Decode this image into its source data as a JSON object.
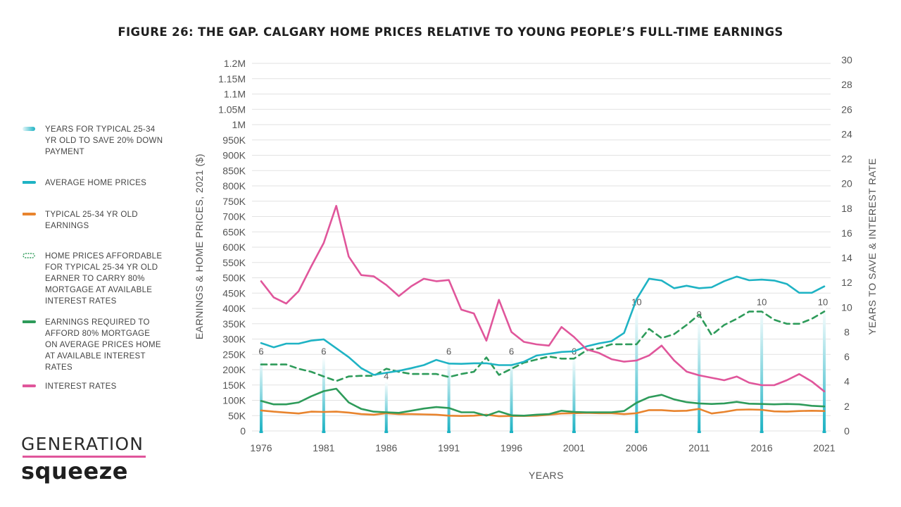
{
  "title": "FIGURE 26: THE GAP. CALGARY HOME PRICES RELATIVE TO YOUNG PEOPLE’S FULL-TIME EARNINGS",
  "brand": {
    "line1": "GENERATION",
    "line2": "squeeze"
  },
  "legend": [
    {
      "text": "YEARS FOR TYPICAL 25-34 YR OLD TO SAVE 20% DOWN PAYMENT",
      "swatch": "bar",
      "color": "#1fb3c4"
    },
    {
      "text": "AVERAGE HOME PRICES",
      "swatch": "line",
      "color": "#1fb3c4"
    },
    {
      "text": "TYPICAL 25-34 YR OLD EARNINGS",
      "swatch": "line",
      "color": "#e8842e"
    },
    {
      "text": "HOME PRICES AFFORDABLE FOR TYPICAL 25-34 YR OLD EARNER TO CARRY 80% MORTGAGE AT AVAILABLE INTEREST RATES",
      "swatch": "dashed",
      "color": "#2e9b5a"
    },
    {
      "text": "EARNINGS REQUIRED TO AFFORD 80% MORTGAGE ON AVERAGE PRICES HOME AT AVAILABLE INTEREST RATES",
      "swatch": "line",
      "color": "#2e9b5a"
    },
    {
      "text": "INTEREST RATES",
      "swatch": "line",
      "color": "#e0569b"
    }
  ],
  "chart_data": {
    "type": "line",
    "xlabel": "YEARS",
    "ylabel": "EARNINGS & HOME PRICES, 2021 ($)",
    "y2label": "YEARS TO SAVE & INTEREST RATE",
    "x": [
      1976,
      1977,
      1978,
      1979,
      1980,
      1981,
      1982,
      1983,
      1984,
      1985,
      1986,
      1987,
      1988,
      1989,
      1990,
      1991,
      1992,
      1993,
      1994,
      1995,
      1996,
      1997,
      1998,
      1999,
      2000,
      2001,
      2002,
      2003,
      2004,
      2005,
      2006,
      2007,
      2008,
      2009,
      2010,
      2011,
      2012,
      2013,
      2014,
      2015,
      2016,
      2017,
      2018,
      2019,
      2020,
      2021
    ],
    "x_ticks": [
      1976,
      1981,
      1986,
      1991,
      1996,
      2001,
      2006,
      2011,
      2016,
      2021
    ],
    "ylim": [
      0,
      1200000
    ],
    "y_ticks": [
      {
        "v": 0,
        "label": "0"
      },
      {
        "v": 50000,
        "label": "50K"
      },
      {
        "v": 100000,
        "label": "100K"
      },
      {
        "v": 150000,
        "label": "150K"
      },
      {
        "v": 200000,
        "label": "200K"
      },
      {
        "v": 250000,
        "label": "250K"
      },
      {
        "v": 300000,
        "label": "300K"
      },
      {
        "v": 350000,
        "label": "350K"
      },
      {
        "v": 400000,
        "label": "400K"
      },
      {
        "v": 450000,
        "label": "450K"
      },
      {
        "v": 500000,
        "label": "500K"
      },
      {
        "v": 550000,
        "label": "550K"
      },
      {
        "v": 600000,
        "label": "600K"
      },
      {
        "v": 650000,
        "label": "650K"
      },
      {
        "v": 700000,
        "label": "700K"
      },
      {
        "v": 750000,
        "label": "750K"
      },
      {
        "v": 800000,
        "label": "800K"
      },
      {
        "v": 850000,
        "label": "850K"
      },
      {
        "v": 900000,
        "label": "900K"
      },
      {
        "v": 950000,
        "label": "950K"
      },
      {
        "v": 1000000,
        "label": "1M"
      },
      {
        "v": 1050000,
        "label": "1.05M"
      },
      {
        "v": 1100000,
        "label": "1.1M"
      },
      {
        "v": 1150000,
        "label": "1.15M"
      },
      {
        "v": 1200000,
        "label": "1.2M"
      }
    ],
    "y2lim": [
      0,
      30
    ],
    "y2_ticks": [
      0,
      2,
      4,
      6,
      8,
      10,
      12,
      14,
      16,
      18,
      20,
      22,
      24,
      26,
      28,
      30
    ],
    "grid": true,
    "bars": {
      "name": "YEARS FOR TYPICAL 25-34 YR OLD TO SAVE 20% DOWN PAYMENT",
      "axis": "right",
      "points": [
        {
          "year": 1976,
          "value": 6,
          "label": "6"
        },
        {
          "year": 1981,
          "value": 6,
          "label": "6"
        },
        {
          "year": 1986,
          "value": 4,
          "label": "4"
        },
        {
          "year": 1991,
          "value": 6,
          "label": "6"
        },
        {
          "year": 1996,
          "value": 6,
          "label": "6"
        },
        {
          "year": 2001,
          "value": 6,
          "label": "6"
        },
        {
          "year": 2006,
          "value": 10,
          "label": "10"
        },
        {
          "year": 2011,
          "value": 9,
          "label": "9"
        },
        {
          "year": 2016,
          "value": 10,
          "label": "10"
        },
        {
          "year": 2021,
          "value": 10,
          "label": "10"
        }
      ]
    },
    "series": [
      {
        "name": "HOME PRICES AFFORDABLE FOR TYPICAL 25-34 YR OLD EARNER TO CARRY 80% MORTGAGE AT AVAILABLE INTEREST RATES",
        "axis": "left",
        "color": "#2e9b5a",
        "style": "dashed",
        "values": [
          217000,
          217000,
          217000,
          203000,
          193000,
          178000,
          163000,
          178000,
          180000,
          180000,
          203000,
          193000,
          186000,
          186000,
          186000,
          176000,
          186000,
          193000,
          240000,
          183000,
          203000,
          223000,
          233000,
          243000,
          236000,
          236000,
          263000,
          270000,
          283000,
          283000,
          283000,
          333000,
          303000,
          316000,
          346000,
          380000,
          313000,
          346000,
          366000,
          390000,
          390000,
          363000,
          350000,
          350000,
          366000,
          390000
        ]
      },
      {
        "name": "AVERAGE HOME PRICES",
        "axis": "left",
        "color": "#1fb3c4",
        "style": "solid",
        "values": [
          287000,
          273000,
          285000,
          285000,
          295000,
          299000,
          270000,
          241000,
          205000,
          183000,
          190000,
          196000,
          205000,
          215000,
          232000,
          220000,
          219000,
          221000,
          221000,
          215000,
          215000,
          226000,
          246000,
          252000,
          258000,
          260000,
          276000,
          286000,
          293000,
          320000,
          430000,
          497000,
          491000,
          466000,
          474000,
          466000,
          469000,
          489000,
          504000,
          492000,
          494000,
          491000,
          480000,
          451000,
          451000,
          472000
        ]
      },
      {
        "name": "TYPICAL 25-34 YR OLD EARNINGS",
        "axis": "left",
        "color": "#e8842e",
        "style": "solid",
        "values": [
          67000,
          63000,
          60000,
          57000,
          63000,
          62000,
          63000,
          60000,
          55000,
          53000,
          58000,
          55000,
          55000,
          54000,
          53000,
          50000,
          49000,
          50000,
          53000,
          48000,
          49000,
          49000,
          50000,
          53000,
          57000,
          58000,
          59000,
          58000,
          58000,
          55000,
          58000,
          68000,
          68000,
          65000,
          66000,
          72000,
          57000,
          62000,
          69000,
          70000,
          69000,
          64000,
          63000,
          65000,
          66000,
          65000
        ]
      },
      {
        "name": "EARNINGS REQUIRED TO AFFORD 80% MORTGAGE ON AVERAGE PRICES HOME AT AVAILABLE INTEREST RATES",
        "axis": "left",
        "color": "#2e9b5a",
        "style": "solid",
        "values": [
          98000,
          87000,
          87000,
          93000,
          113000,
          130000,
          138000,
          93000,
          72000,
          63000,
          61000,
          59000,
          66000,
          73000,
          78000,
          75000,
          61000,
          61000,
          50000,
          64000,
          51000,
          50000,
          53000,
          55000,
          66000,
          62000,
          61000,
          61000,
          61000,
          65000,
          92000,
          110000,
          118000,
          103000,
          94000,
          90000,
          88000,
          90000,
          95000,
          89000,
          88000,
          87000,
          88000,
          87000,
          82000,
          80000
        ]
      },
      {
        "name": "INTEREST RATES",
        "axis": "right",
        "color": "#e0569b",
        "style": "solid",
        "values": [
          12.1,
          10.8,
          10.3,
          11.3,
          13.3,
          15.2,
          18.2,
          14.1,
          12.6,
          12.5,
          11.8,
          10.9,
          11.7,
          12.3,
          12.1,
          12.2,
          9.8,
          9.5,
          7.3,
          10.6,
          8.0,
          7.2,
          7.0,
          6.9,
          8.4,
          7.6,
          6.6,
          6.3,
          5.8,
          5.6,
          5.7,
          6.1,
          6.9,
          5.7,
          4.8,
          4.5,
          4.3,
          4.1,
          4.4,
          3.9,
          3.7,
          3.7,
          4.1,
          4.6,
          4.0,
          3.2
        ]
      }
    ]
  }
}
